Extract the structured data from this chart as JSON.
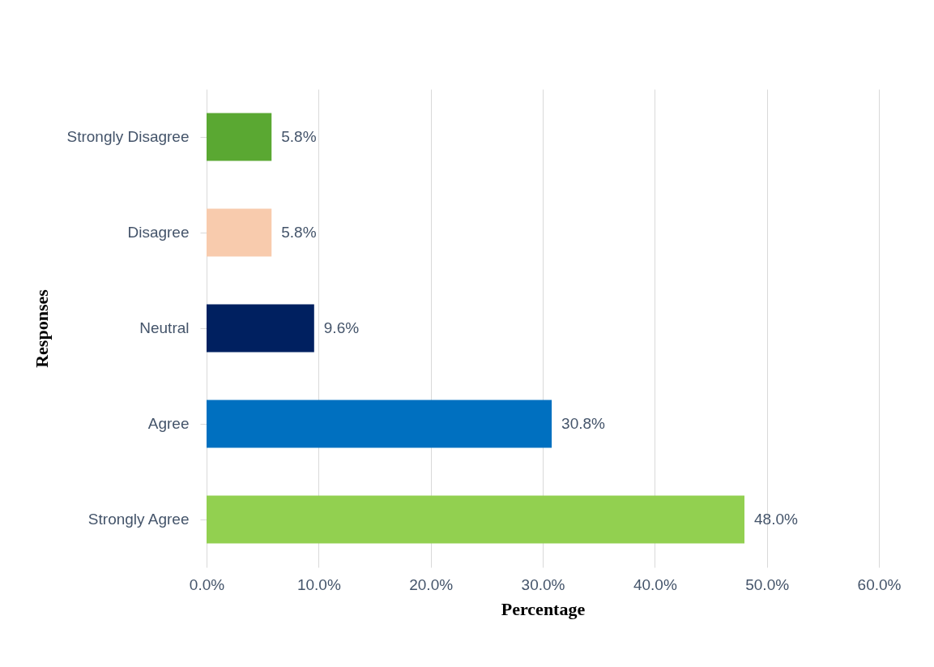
{
  "chart_data": {
    "type": "bar",
    "orientation": "horizontal",
    "xlabel": "Percentage",
    "ylabel": "Responses",
    "categories": [
      "Strongly Disagree",
      "Disagree",
      "Neutral",
      "Agree",
      "Strongly Agree"
    ],
    "values": [
      5.8,
      5.8,
      9.6,
      30.8,
      48.0
    ],
    "colors": [
      "#5aa832",
      "#f8cbad",
      "#002060",
      "#0070c0",
      "#92d050"
    ],
    "value_labels": [
      "5.8%",
      "5.8%",
      "9.6%",
      "30.8%",
      "48.0%"
    ],
    "xlim": [
      0,
      60
    ],
    "xticks": [
      {
        "value": 0,
        "label": "0.0%"
      },
      {
        "value": 10,
        "label": "10.0%"
      },
      {
        "value": 20,
        "label": "20.0%"
      },
      {
        "value": 30,
        "label": "30.0%"
      },
      {
        "value": 40,
        "label": "40.0%"
      },
      {
        "value": 50,
        "label": "50.0%"
      },
      {
        "value": 60,
        "label": "60.0%"
      }
    ],
    "grid": "x"
  }
}
